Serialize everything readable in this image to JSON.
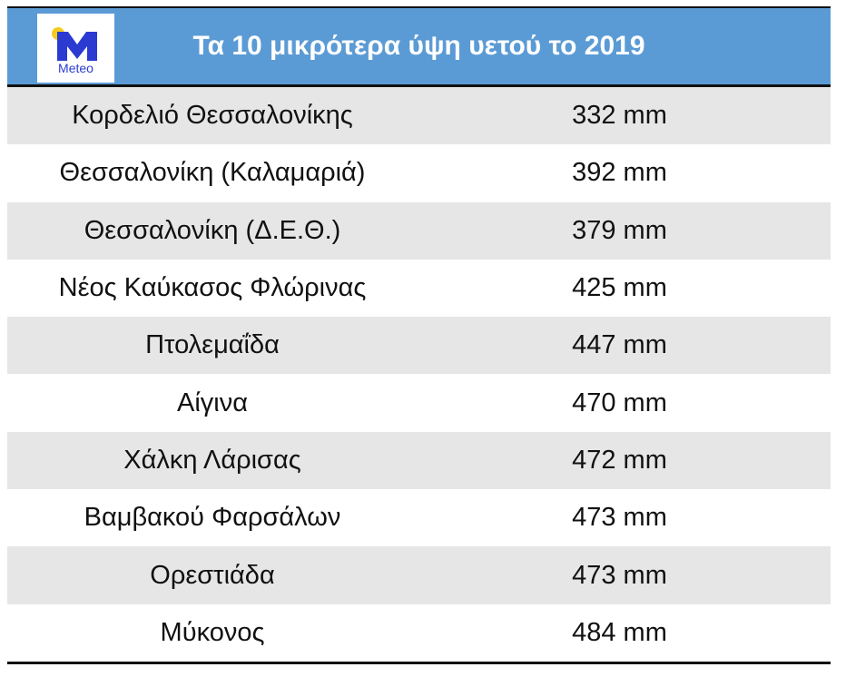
{
  "header": {
    "logo_text": "Meteo",
    "title": "Τα 10 μικρότερα ύψη υετού το 2019"
  },
  "colors": {
    "header_bg": "#5b9bd5",
    "stripe": "#e7e6e6",
    "logo_blue": "#2b3bd1",
    "logo_sun": "#f5cc1e"
  },
  "rows": [
    {
      "station": "Κορδελιό Θεσσαλονίκης",
      "value": "332 mm"
    },
    {
      "station": "Θεσσαλονίκη (Καλαμαριά)",
      "value": "392 mm"
    },
    {
      "station": "Θεσσαλονίκη (Δ.Ε.Θ.)",
      "value": "379 mm"
    },
    {
      "station": "Νέος Καύκασος Φλώρινας",
      "value": "425 mm"
    },
    {
      "station": "Πτολεμαΐδα",
      "value": "447 mm"
    },
    {
      "station": "Αίγινα",
      "value": "470 mm"
    },
    {
      "station": "Χάλκη Λάρισας",
      "value": "472 mm"
    },
    {
      "station": "Βαμβακού Φαρσάλων",
      "value": "473 mm"
    },
    {
      "station": "Ορεστιάδα",
      "value": "473 mm"
    },
    {
      "station": "Μύκονος",
      "value": "484 mm"
    }
  ]
}
